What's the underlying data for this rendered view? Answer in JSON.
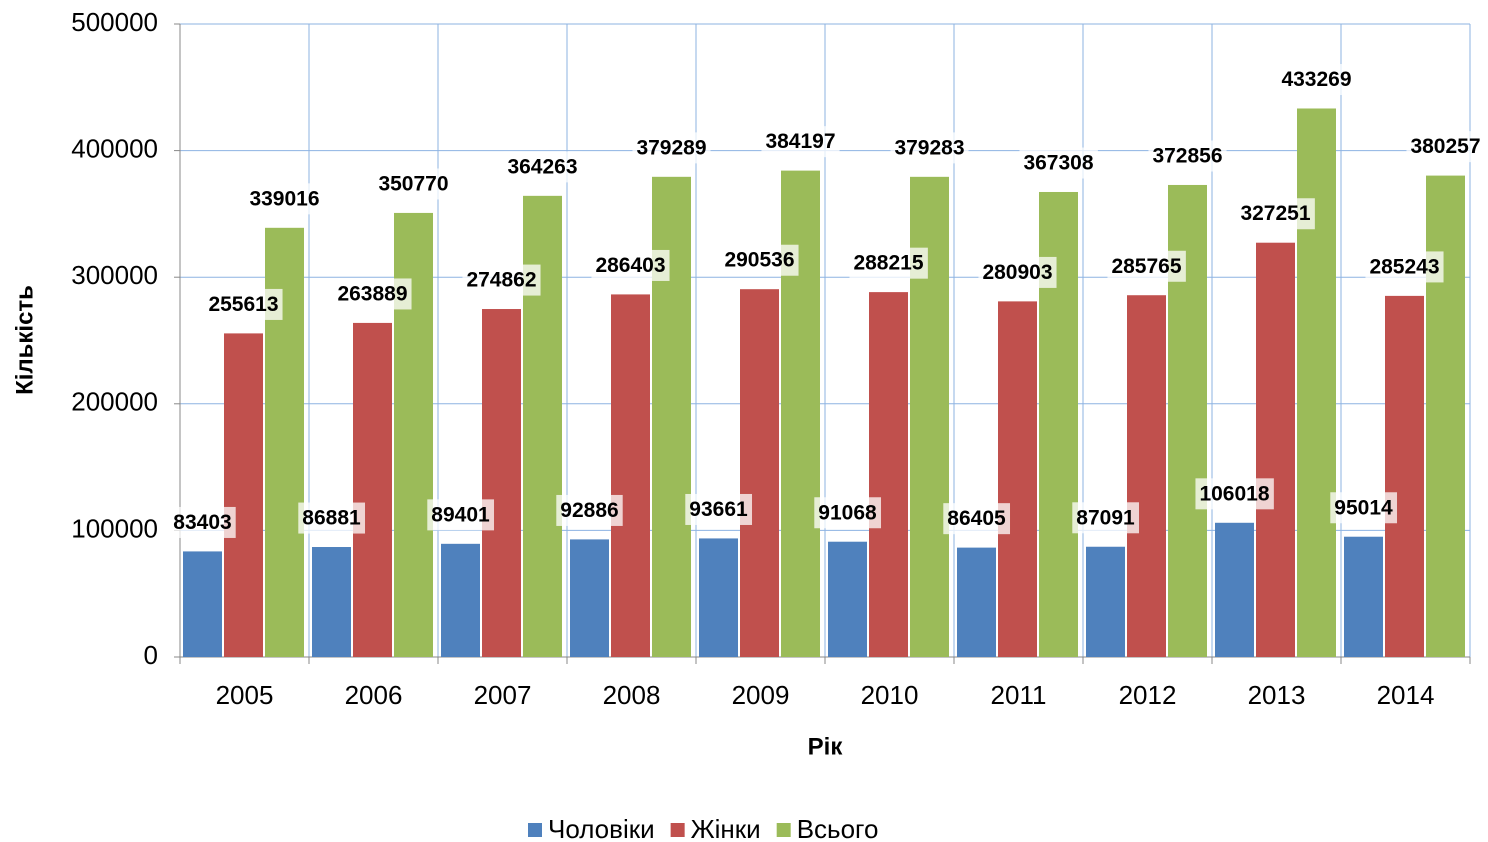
{
  "chart_data": {
    "type": "bar",
    "x_label": "Рік",
    "y_label": "Кількість",
    "categories": [
      "2005",
      "2006",
      "2007",
      "2008",
      "2009",
      "2010",
      "2011",
      "2012",
      "2013",
      "2014"
    ],
    "series": [
      {
        "name": "Чоловіки",
        "color": "#4f81bd",
        "values": [
          83403,
          86881,
          89401,
          92886,
          93661,
          91068,
          86405,
          87091,
          106018,
          95014
        ]
      },
      {
        "name": "Жінки",
        "color": "#c0504d",
        "values": [
          255613,
          263889,
          274862,
          286403,
          290536,
          288215,
          280903,
          285765,
          327251,
          285243
        ]
      },
      {
        "name": "Всього",
        "color": "#9bbb59",
        "values": [
          339016,
          350770,
          364263,
          379289,
          384197,
          379283,
          367308,
          372856,
          433269,
          380257
        ]
      }
    ],
    "ylim": [
      0,
      500000
    ],
    "yticks": [
      0,
      100000,
      200000,
      300000,
      400000,
      500000
    ],
    "grid": true,
    "legend": "bottom"
  }
}
